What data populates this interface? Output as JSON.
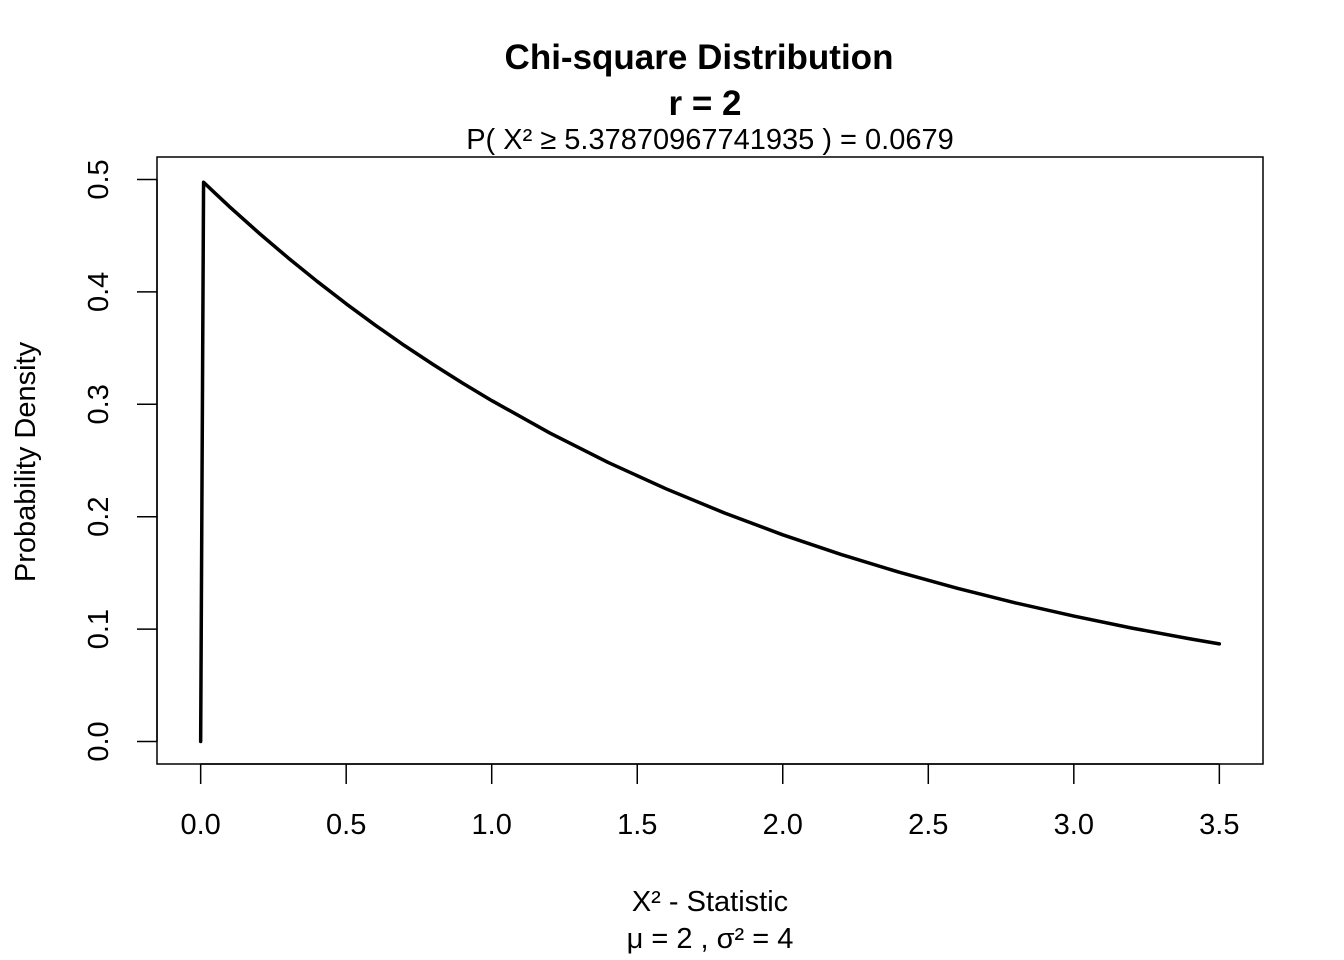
{
  "chart_data": {
    "type": "line",
    "title": "Chi-square Distribution",
    "subtitle": "r  =  2",
    "annotation": "P(  X²  ≥  5.37870967741935  ) = 0.0679",
    "xlabel": "X² - Statistic",
    "xlabel_sub": "μ =  2 , σ² =  4",
    "ylabel": "Probability Density",
    "xlim": [
      -0.15,
      3.65
    ],
    "ylim": [
      -0.02,
      0.52
    ],
    "x_ticks": [
      0.0,
      0.5,
      1.0,
      1.5,
      2.0,
      2.5,
      3.0,
      3.5
    ],
    "x_tick_labels": [
      "0.0",
      "0.5",
      "1.0",
      "1.5",
      "2.0",
      "2.5",
      "3.0",
      "3.5"
    ],
    "y_ticks": [
      0.0,
      0.1,
      0.2,
      0.3,
      0.4,
      0.5
    ],
    "y_tick_labels": [
      "0.0",
      "0.1",
      "0.2",
      "0.3",
      "0.4",
      "0.5"
    ],
    "grid": false,
    "series": [
      {
        "color": "#000000",
        "x": [
          0.0,
          0.0,
          1e-05,
          0.01,
          0.05,
          0.1,
          0.2,
          0.3,
          0.4,
          0.5,
          0.6,
          0.7,
          0.8,
          0.9,
          1.0,
          1.2,
          1.4,
          1.6,
          1.8,
          2.0,
          2.2,
          2.4,
          2.6,
          2.8,
          3.0,
          3.2,
          3.4,
          3.5
        ],
        "y": [
          0.0,
          0.0,
          0.0,
          0.4975,
          0.4877,
          0.4756,
          0.4524,
          0.4304,
          0.4094,
          0.3894,
          0.3704,
          0.3523,
          0.3352,
          0.3188,
          0.3033,
          0.2744,
          0.2483,
          0.2247,
          0.2033,
          0.1839,
          0.1664,
          0.1506,
          0.1363,
          0.1233,
          0.1116,
          0.1009,
          0.0913,
          0.0869
        ]
      }
    ]
  }
}
